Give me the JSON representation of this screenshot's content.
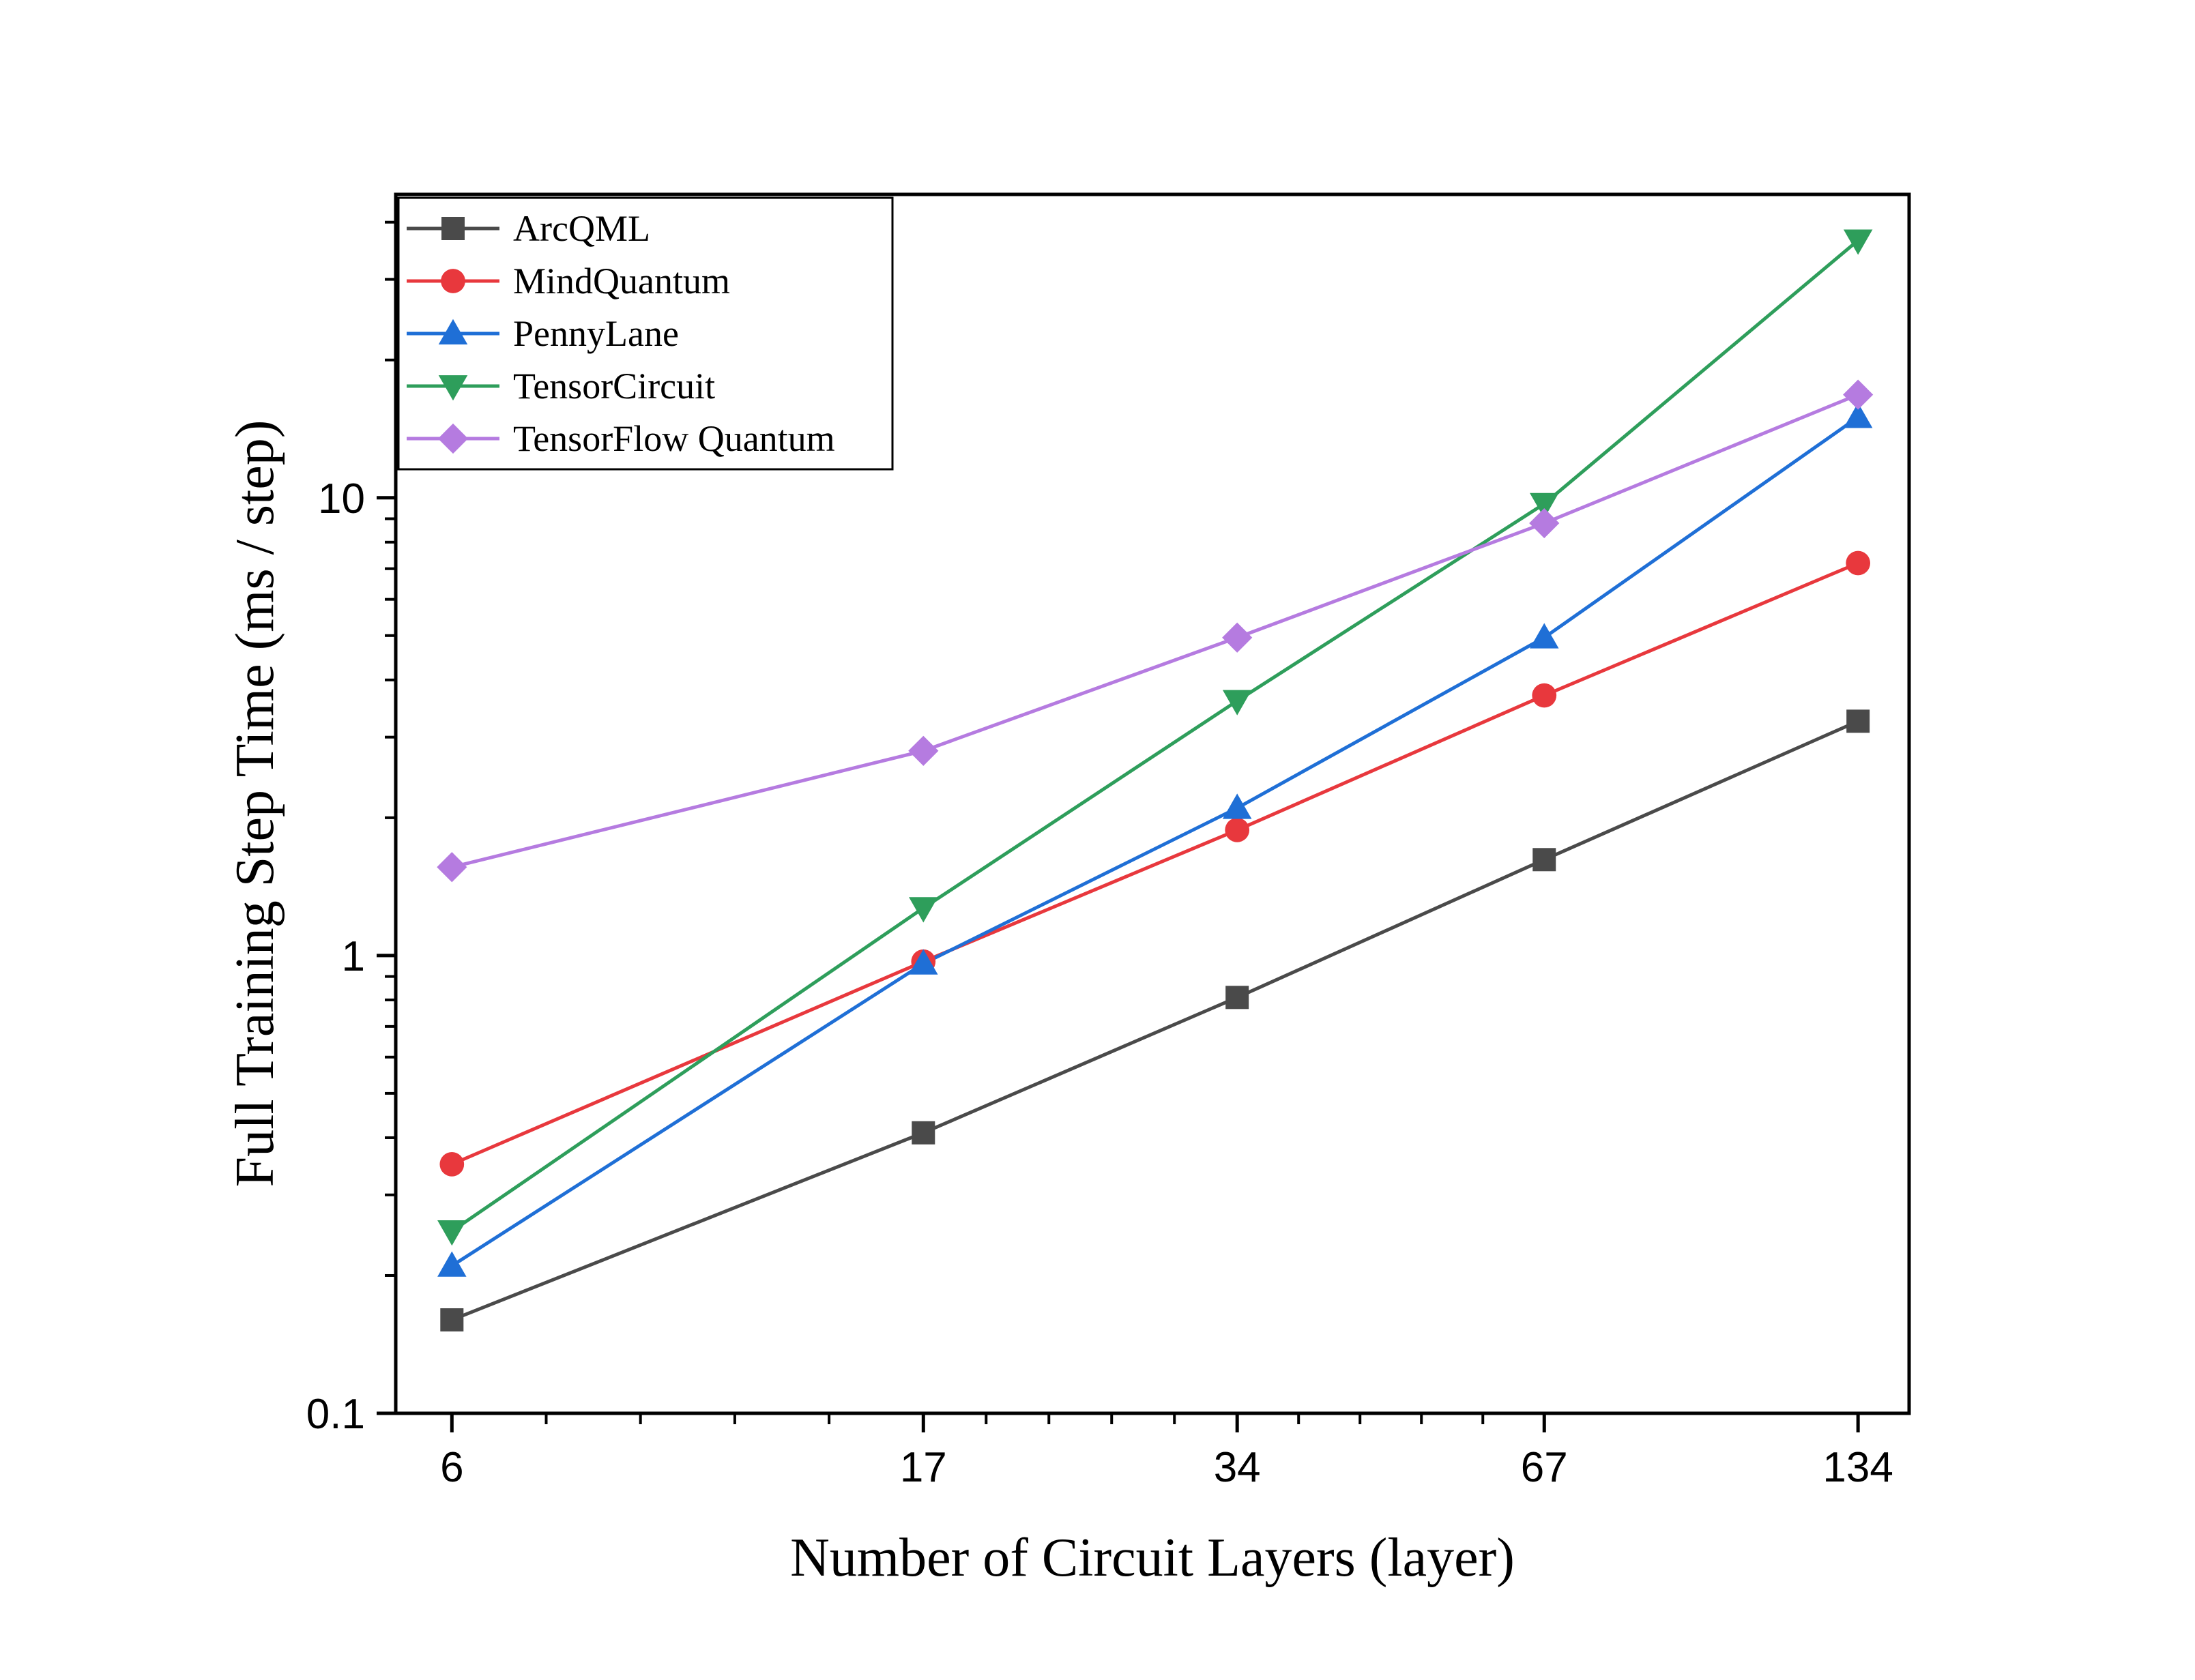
{
  "chart_data": {
    "type": "line",
    "xlabel": "Number of Circuit Layers (layer)",
    "ylabel": "Full Training Step Time (ms / step)",
    "x_scale": "log2",
    "y_scale": "log10",
    "x": [
      6,
      17,
      34,
      67,
      134
    ],
    "x_tick_labels": [
      "6",
      "17",
      "34",
      "67",
      "134"
    ],
    "xlim": [
      5.3,
      150
    ],
    "ylim": [
      0.1,
      46
    ],
    "y_tick_labels": [
      "0.1",
      "1",
      "10"
    ],
    "y_ticks": [
      0.1,
      1,
      10
    ],
    "legend_position": "top-left",
    "grid": false,
    "series": [
      {
        "name": "ArcQML",
        "marker": "square",
        "color": "#4a4a4a",
        "values": [
          0.16,
          0.41,
          0.81,
          1.62,
          3.25
        ]
      },
      {
        "name": "MindQuantum",
        "marker": "circle",
        "color": "#e8383d",
        "values": [
          0.35,
          0.97,
          1.88,
          3.7,
          7.2
        ]
      },
      {
        "name": "PennyLane",
        "marker": "triangle-up",
        "color": "#1f6fd6",
        "values": [
          0.21,
          0.96,
          2.1,
          4.95,
          15.0
        ]
      },
      {
        "name": "TensorCircuit",
        "marker": "triangle-down",
        "color": "#2e9e5b",
        "values": [
          0.25,
          1.27,
          3.6,
          9.7,
          36.5
        ]
      },
      {
        "name": "TensorFlow Quantum",
        "marker": "diamond",
        "color": "#b57be0",
        "values": [
          1.56,
          2.8,
          4.95,
          8.8,
          16.8
        ]
      }
    ]
  }
}
